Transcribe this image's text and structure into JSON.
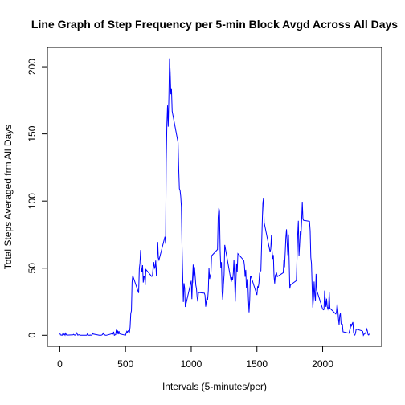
{
  "chart_data": {
    "type": "line",
    "title": "Line Graph of Step Frequency per 5-min Block Avgd Across All Days",
    "x_label": "Intervals (5-minutes/per)",
    "y_label": "Total Steps Averaged frm All Days",
    "color": "#0000ff",
    "xlim": [
      -94.2,
      2449.2
    ],
    "ylim": [
      -8.2,
      214.4
    ],
    "xticks": [
      0,
      500,
      1000,
      1500,
      2000
    ],
    "yticks": [
      0,
      50,
      100,
      150,
      200
    ],
    "x": [
      0,
      5,
      10,
      15,
      20,
      25,
      30,
      35,
      40,
      45,
      50,
      55,
      100,
      105,
      110,
      115,
      120,
      125,
      130,
      135,
      140,
      145,
      150,
      155,
      200,
      205,
      210,
      215,
      220,
      225,
      230,
      235,
      240,
      245,
      250,
      255,
      300,
      305,
      310,
      315,
      320,
      325,
      330,
      335,
      340,
      345,
      350,
      355,
      400,
      405,
      410,
      415,
      420,
      425,
      430,
      435,
      440,
      445,
      450,
      455,
      500,
      505,
      510,
      515,
      520,
      525,
      530,
      535,
      540,
      545,
      550,
      555,
      600,
      605,
      610,
      615,
      620,
      625,
      630,
      635,
      640,
      645,
      650,
      655,
      700,
      705,
      710,
      715,
      720,
      725,
      730,
      735,
      740,
      745,
      750,
      755,
      800,
      805,
      810,
      815,
      820,
      825,
      830,
      835,
      840,
      845,
      850,
      855,
      900,
      905,
      910,
      915,
      920,
      925,
      930,
      935,
      940,
      945,
      950,
      955,
      1000,
      1005,
      1010,
      1015,
      1020,
      1025,
      1030,
      1035,
      1040,
      1045,
      1050,
      1055,
      1100,
      1105,
      1110,
      1115,
      1120,
      1125,
      1130,
      1135,
      1140,
      1145,
      1150,
      1155,
      1200,
      1205,
      1210,
      1215,
      1220,
      1225,
      1230,
      1235,
      1240,
      1245,
      1250,
      1255,
      1300,
      1305,
      1310,
      1315,
      1320,
      1325,
      1330,
      1335,
      1340,
      1345,
      1350,
      1355,
      1400,
      1405,
      1410,
      1415,
      1420,
      1425,
      1430,
      1435,
      1440,
      1445,
      1450,
      1455,
      1500,
      1505,
      1510,
      1515,
      1520,
      1525,
      1530,
      1535,
      1540,
      1545,
      1550,
      1555,
      1600,
      1605,
      1610,
      1615,
      1620,
      1625,
      1630,
      1635,
      1640,
      1645,
      1650,
      1655,
      1700,
      1705,
      1710,
      1715,
      1720,
      1725,
      1730,
      1735,
      1740,
      1745,
      1750,
      1755,
      1800,
      1805,
      1810,
      1815,
      1820,
      1825,
      1830,
      1835,
      1840,
      1845,
      1850,
      1855,
      1900,
      1905,
      1910,
      1915,
      1920,
      1925,
      1930,
      1935,
      1940,
      1945,
      1950,
      1955,
      2000,
      2005,
      2010,
      2015,
      2020,
      2025,
      2030,
      2035,
      2040,
      2045,
      2050,
      2055,
      2100,
      2105,
      2110,
      2115,
      2120,
      2125,
      2130,
      2135,
      2140,
      2145,
      2150,
      2155,
      2200,
      2205,
      2210,
      2215,
      2220,
      2225,
      2230,
      2235,
      2240,
      2245,
      2250,
      2255,
      2300,
      2305,
      2310,
      2315,
      2320,
      2325,
      2330,
      2335,
      2340,
      2345,
      2350,
      2355
    ],
    "values": [
      1.7,
      0.3,
      0.1,
      0.2,
      0.1,
      2.1,
      0.5,
      0.9,
      0,
      1.5,
      0.3,
      0.1,
      0.3,
      0.7,
      0.2,
      0.3,
      0,
      1.1,
      1.8,
      0.2,
      0.2,
      0.4,
      0.3,
      0,
      0,
      0,
      1.1,
      0,
      0,
      0.1,
      0,
      0.2,
      0,
      0,
      1.5,
      0.9,
      0,
      0,
      0,
      0,
      0.2,
      0.6,
      1.6,
      0.6,
      0.5,
      0.1,
      0,
      0,
      1.2,
      0.9,
      2.6,
      0,
      0.3,
      0.4,
      4.1,
      0.7,
      3.5,
      0.8,
      3.1,
      1.1,
      0,
      1.6,
      3,
      2.2,
      3.3,
      3,
      2.1,
      6.1,
      16,
      18.3,
      39.5,
      44.5,
      31.5,
      49.3,
      53.8,
      63.5,
      50,
      47.1,
      52.2,
      39.3,
      44,
      44.2,
      37.4,
      49,
      43.8,
      44.4,
      50.5,
      54.5,
      49.9,
      51,
      55.7,
      44.3,
      52.3,
      69.5,
      57.8,
      56.2,
      73.4,
      68.2,
      129.4,
      157.5,
      171.2,
      155.4,
      177.3,
      206.2,
      195.9,
      179.6,
      183.4,
      167,
      143.5,
      124,
      109.1,
      108.1,
      103.7,
      96,
      66.2,
      45.2,
      24.8,
      38.8,
      35,
      21.1,
      40.6,
      27,
      42.4,
      52.7,
      38.9,
      50.8,
      44.3,
      37.4,
      34.7,
      28.3,
      25.1,
      31.9,
      31.4,
      29.7,
      21.3,
      25.5,
      28.4,
      26.5,
      33.4,
      50,
      42,
      44.6,
      46,
      59.2,
      63.9,
      87.7,
      94.8,
      92.8,
      63.4,
      50.2,
      54.5,
      32.4,
      26.5,
      37.7,
      45.1,
      67.3,
      42.3,
      39.9,
      43.3,
      41,
      46.2,
      56.4,
      42.8,
      25.1,
      40,
      53.5,
      47.3,
      60.8,
      55.8,
      52,
      43.6,
      48.7,
      35.5,
      37.5,
      41.8,
      27.5,
      17.1,
      26.1,
      43.6,
      43.8,
      30,
      36.1,
      35.5,
      38.8,
      46,
      47.8,
      48.1,
      65.3,
      82.9,
      98.7,
      102.1,
      84,
      62.1,
      64.1,
      74.5,
      63.2,
      56.9,
      59.8,
      43.9,
      38.6,
      44.7,
      45.5,
      46.2,
      43.7,
      46.6,
      56.3,
      50.7,
      61.2,
      72.7,
      78.9,
      68.9,
      59.7,
      75.1,
      56.5,
      34.8,
      37.5,
      40.7,
      58,
      74.7,
      85.3,
      59.3,
      67.8,
      77.7,
      74.2,
      85.3,
      99.5,
      86.6,
      85.6,
      84.9,
      77.8,
      58,
      53.4,
      36.3,
      20.7,
      27.4,
      40,
      30.2,
      25.5,
      45.7,
      33.5,
      19.6,
      19,
      19.3,
      33.3,
      26.8,
      21.2,
      27.3,
      21.3,
      19.5,
      21.3,
      32.3,
      20.2,
      15.9,
      17.2,
      23.5,
      19.2,
      12.5,
      8,
      14.7,
      16.3,
      8.7,
      7.8,
      8.1,
      2.6,
      1.5,
      3.7,
      4.8,
      8.5,
      7.1,
      8.7,
      9.8,
      2.2,
      0.3,
      0.1,
      1.6,
      4.6,
      3.3,
      2.8,
      0,
      0.8,
      1,
      1.6,
      2.6,
      4.7,
      3.3,
      0.6,
      0.2,
      1.1
    ]
  }
}
